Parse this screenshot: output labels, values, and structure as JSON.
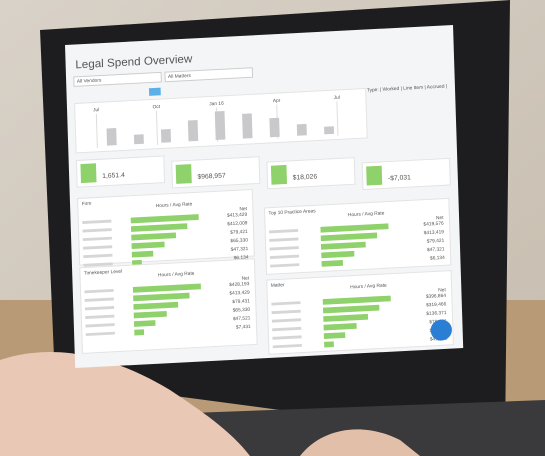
{
  "header": {
    "title": "Legal Spend Overview",
    "filters": [
      "All Vendors",
      "All Matters"
    ],
    "data_type": "Data Type: | Worked | Line Item | Accrued |"
  },
  "timeline": [
    "Jul",
    "Oct",
    "Jan 16",
    "Apr",
    "Jul"
  ],
  "kpis": [
    "1,651.4",
    "$968,957",
    "$18,026",
    "-$7,031"
  ],
  "panels": [
    {
      "title": "Firm",
      "column1": "Hours / Avg Rate",
      "column2": "Net",
      "rows": [
        "$413,429",
        "$412,009",
        "$79,421",
        "$65,330",
        "$47,321",
        "$6,134"
      ]
    },
    {
      "title": "Top 10 Practice Areas",
      "column1": "Hours / Avg Rate",
      "column2": "Net",
      "rows": [
        "$419,576",
        "$413,419",
        "$79,421",
        "$47,321",
        "$6,134"
      ]
    },
    {
      "title": "Timekeeper Level",
      "column1": "Hours / Avg Rate",
      "column2": "Net",
      "rows": [
        "$428,193",
        "$413,429",
        "$79,431",
        "$65,330",
        "$47,521",
        "$7,431"
      ]
    },
    {
      "title": "Matter",
      "column1": "Hours / Avg Rate",
      "column2": "Net",
      "rows": [
        "$396,864",
        "$319,466",
        "$136,371",
        "$79,421",
        "$60,143",
        "$41,421"
      ]
    }
  ]
}
